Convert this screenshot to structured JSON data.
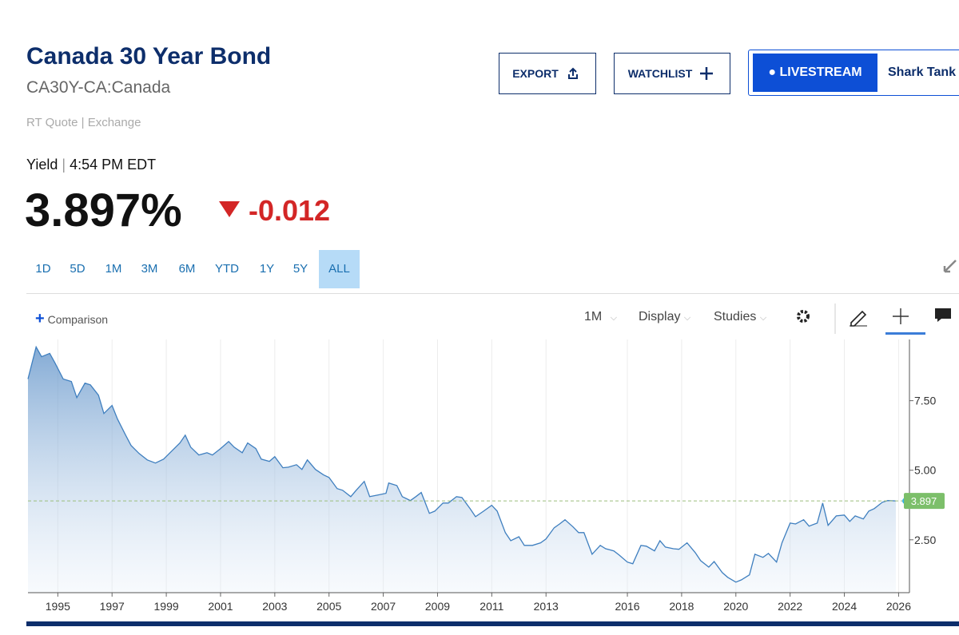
{
  "header": {
    "title": "Canada 30 Year Bond",
    "symbol": "CA30Y-CA:Canada",
    "quote_source": "RT Quote | Exchange",
    "quote_label": "Yield",
    "quote_time": "4:54 PM EDT",
    "price": "3.897%",
    "change": "-0.012"
  },
  "buttons": {
    "export": "EXPORT",
    "watchlist": "WATCHLIST",
    "livestream": "LIVESTREAM",
    "show": "Shark Tank"
  },
  "ranges": {
    "items": [
      "1D",
      "5D",
      "1M",
      "3M",
      "6M",
      "YTD",
      "1Y",
      "5Y",
      "ALL"
    ],
    "selected": "ALL"
  },
  "toolbar": {
    "comparison": "Comparison",
    "interval": "1M",
    "display": "Display",
    "studies": "Studies"
  },
  "chart_data": {
    "type": "area",
    "color": "#3f7fbf",
    "x": [
      1993.9,
      1994.2,
      1994.4,
      1994.7,
      1994.9,
      1995.2,
      1995.5,
      1995.7,
      1996.0,
      1996.2,
      1996.5,
      1996.7,
      1997.0,
      1997.2,
      1997.5,
      1997.7,
      1998.0,
      1998.3,
      1998.6,
      1998.9,
      1999.2,
      1999.5,
      1999.7,
      1999.9,
      2000.2,
      2000.5,
      2000.7,
      2001.0,
      2001.3,
      2001.5,
      2001.8,
      2002.0,
      2002.3,
      2002.5,
      2002.8,
      2003.0,
      2003.3,
      2003.5,
      2003.8,
      2004.0,
      2004.2,
      2004.5,
      2004.8,
      2005.0,
      2005.3,
      2005.5,
      2005.8,
      2006.0,
      2006.3,
      2006.5,
      2006.8,
      2007.1,
      2007.2,
      2007.5,
      2007.7,
      2008.0,
      2008.2,
      2008.4,
      2008.7,
      2008.9,
      2009.2,
      2009.4,
      2009.7,
      2009.9,
      2010.2,
      2010.4,
      2010.7,
      2011.0,
      2011.2,
      2011.5,
      2011.7,
      2012.0,
      2012.2,
      2012.5,
      2012.8,
      2013.0,
      2013.3,
      2013.5,
      2013.7,
      2014.0,
      2014.2,
      2014.4,
      2014.7,
      2015.0,
      2015.2,
      2015.5,
      2015.7,
      2016.0,
      2016.2,
      2016.5,
      2016.7,
      2017.0,
      2017.2,
      2017.4,
      2017.7,
      2017.9,
      2018.2,
      2018.5,
      2018.7,
      2019.0,
      2019.2,
      2019.5,
      2019.7,
      2020.0,
      2020.2,
      2020.5,
      2020.7,
      2021.0,
      2021.2,
      2021.5,
      2021.7,
      2022.0,
      2022.2,
      2022.5,
      2022.7,
      2023.0,
      2023.2,
      2023.4,
      2023.7,
      2024.0,
      2024.2,
      2024.4,
      2024.7,
      2024.9,
      2025.1,
      2025.4,
      2025.6,
      2025.9
    ],
    "values": [
      8.28,
      9.43,
      9.08,
      9.2,
      8.85,
      8.28,
      8.19,
      7.61,
      8.13,
      8.07,
      7.7,
      7.04,
      7.33,
      6.84,
      6.26,
      5.89,
      5.6,
      5.37,
      5.26,
      5.4,
      5.69,
      5.98,
      6.26,
      5.83,
      5.55,
      5.63,
      5.55,
      5.78,
      6.03,
      5.83,
      5.63,
      5.98,
      5.78,
      5.4,
      5.32,
      5.49,
      5.09,
      5.11,
      5.2,
      5.03,
      5.37,
      5.03,
      4.83,
      4.74,
      4.34,
      4.28,
      4.05,
      4.28,
      4.6,
      4.05,
      4.11,
      4.17,
      4.54,
      4.45,
      4.05,
      3.91,
      4.05,
      4.2,
      3.45,
      3.53,
      3.82,
      3.82,
      4.05,
      4.02,
      3.62,
      3.33,
      3.53,
      3.74,
      3.53,
      2.76,
      2.47,
      2.61,
      2.3,
      2.3,
      2.39,
      2.53,
      2.93,
      3.07,
      3.22,
      2.96,
      2.76,
      2.76,
      1.98,
      2.3,
      2.18,
      2.1,
      1.95,
      1.7,
      1.64,
      2.3,
      2.27,
      2.1,
      2.47,
      2.24,
      2.18,
      2.16,
      2.39,
      2.04,
      1.75,
      1.52,
      1.72,
      1.32,
      1.15,
      0.98,
      1.06,
      1.24,
      1.98,
      1.87,
      2.01,
      1.7,
      2.39,
      3.1,
      3.07,
      3.22,
      2.99,
      3.1,
      3.82,
      3.02,
      3.36,
      3.39,
      3.16,
      3.36,
      3.25,
      3.53,
      3.62,
      3.85,
      3.91,
      3.897
    ],
    "last_value": 3.897,
    "xlim": [
      1993.9,
      2026.4
    ],
    "xticks": [
      1995,
      1997,
      1999,
      2001,
      2003,
      2005,
      2007,
      2009,
      2011,
      2013,
      2016,
      2018,
      2020,
      2022,
      2024,
      2026
    ],
    "ylim": [
      0.6,
      9.7
    ],
    "yticks": [
      {
        "value": 2.5,
        "label": "2.50"
      },
      {
        "value": 5,
        "label": "5.00"
      },
      {
        "value": 7.5,
        "label": "7.50"
      }
    ],
    "grid": true
  }
}
